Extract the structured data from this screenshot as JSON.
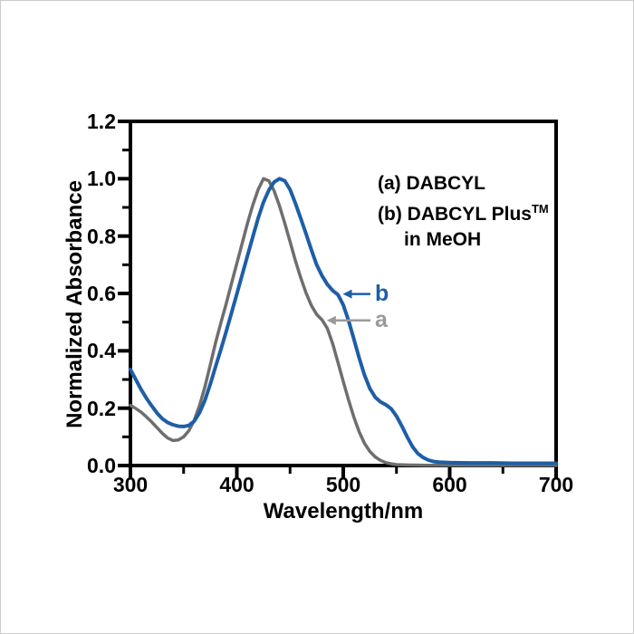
{
  "chart_data": {
    "type": "line",
    "title": "",
    "xlabel": "Wavelength/nm",
    "ylabel": "Normalized Absorbance",
    "xlim": [
      300,
      700
    ],
    "ylim": [
      0.0,
      1.2
    ],
    "grid": false,
    "x_major_ticks": [
      300,
      400,
      500,
      600,
      700
    ],
    "x_minor_ticks": [
      350,
      450,
      550,
      650
    ],
    "y_major_ticks": [
      0.0,
      0.2,
      0.4,
      0.6,
      0.8,
      1.0,
      1.2
    ],
    "y_minor_ticks": [
      0.1,
      0.3,
      0.5,
      0.7,
      0.9,
      1.1
    ],
    "axis_color": "#000000",
    "legend": {
      "line1": "(a) DABCYL",
      "line2": "(b) DABCYL Plus",
      "line2_sup": "TM",
      "line3": "in MeOH",
      "position": "upper-right-inside"
    },
    "series": [
      {
        "name": "a",
        "full_name": "DABCYL",
        "color": "#6e6e6e",
        "stroke_width": 3.5,
        "peak_nm": 425,
        "points": [
          [
            300,
            0.21
          ],
          [
            305,
            0.199
          ],
          [
            310,
            0.186
          ],
          [
            315,
            0.17
          ],
          [
            320,
            0.152
          ],
          [
            325,
            0.132
          ],
          [
            330,
            0.112
          ],
          [
            335,
            0.096
          ],
          [
            340,
            0.087
          ],
          [
            345,
            0.089
          ],
          [
            350,
            0.1
          ],
          [
            355,
            0.122
          ],
          [
            360,
            0.158
          ],
          [
            365,
            0.21
          ],
          [
            370,
            0.275
          ],
          [
            375,
            0.35
          ],
          [
            380,
            0.428
          ],
          [
            385,
            0.498
          ],
          [
            390,
            0.565
          ],
          [
            395,
            0.635
          ],
          [
            400,
            0.705
          ],
          [
            405,
            0.775
          ],
          [
            410,
            0.845
          ],
          [
            415,
            0.908
          ],
          [
            420,
            0.962
          ],
          [
            425,
            1.0
          ],
          [
            430,
            0.993
          ],
          [
            435,
            0.958
          ],
          [
            440,
            0.906
          ],
          [
            445,
            0.845
          ],
          [
            450,
            0.78
          ],
          [
            455,
            0.715
          ],
          [
            460,
            0.655
          ],
          [
            465,
            0.602
          ],
          [
            470,
            0.558
          ],
          [
            475,
            0.527
          ],
          [
            480,
            0.508
          ],
          [
            485,
            0.478
          ],
          [
            490,
            0.425
          ],
          [
            495,
            0.36
          ],
          [
            500,
            0.293
          ],
          [
            505,
            0.228
          ],
          [
            510,
            0.168
          ],
          [
            515,
            0.117
          ],
          [
            520,
            0.077
          ],
          [
            525,
            0.049
          ],
          [
            530,
            0.03
          ],
          [
            535,
            0.018
          ],
          [
            540,
            0.01
          ],
          [
            545,
            0.006
          ],
          [
            550,
            0.003
          ],
          [
            560,
            0.002
          ],
          [
            580,
            0.001
          ],
          [
            600,
            0.001
          ],
          [
            650,
            0.001
          ],
          [
            700,
            0.001
          ]
        ]
      },
      {
        "name": "b",
        "full_name": "DABCYL Plus in MeOH",
        "color": "#1e5ea7",
        "stroke_width": 4,
        "peak_nm": 438,
        "points": [
          [
            300,
            0.335
          ],
          [
            305,
            0.3
          ],
          [
            310,
            0.265
          ],
          [
            315,
            0.235
          ],
          [
            320,
            0.208
          ],
          [
            325,
            0.183
          ],
          [
            330,
            0.163
          ],
          [
            335,
            0.15
          ],
          [
            340,
            0.142
          ],
          [
            345,
            0.137
          ],
          [
            350,
            0.136
          ],
          [
            355,
            0.14
          ],
          [
            360,
            0.155
          ],
          [
            365,
            0.185
          ],
          [
            370,
            0.228
          ],
          [
            375,
            0.283
          ],
          [
            380,
            0.345
          ],
          [
            385,
            0.405
          ],
          [
            390,
            0.468
          ],
          [
            395,
            0.532
          ],
          [
            400,
            0.598
          ],
          [
            405,
            0.665
          ],
          [
            410,
            0.732
          ],
          [
            415,
            0.797
          ],
          [
            420,
            0.862
          ],
          [
            425,
            0.918
          ],
          [
            430,
            0.96
          ],
          [
            435,
            0.988
          ],
          [
            440,
            1.0
          ],
          [
            445,
            0.993
          ],
          [
            450,
            0.962
          ],
          [
            455,
            0.915
          ],
          [
            460,
            0.862
          ],
          [
            465,
            0.808
          ],
          [
            470,
            0.752
          ],
          [
            475,
            0.7
          ],
          [
            480,
            0.662
          ],
          [
            485,
            0.632
          ],
          [
            490,
            0.61
          ],
          [
            495,
            0.596
          ],
          [
            500,
            0.56
          ],
          [
            505,
            0.505
          ],
          [
            510,
            0.44
          ],
          [
            515,
            0.375
          ],
          [
            520,
            0.315
          ],
          [
            525,
            0.268
          ],
          [
            530,
            0.238
          ],
          [
            535,
            0.222
          ],
          [
            540,
            0.212
          ],
          [
            545,
            0.198
          ],
          [
            550,
            0.172
          ],
          [
            555,
            0.138
          ],
          [
            560,
            0.1
          ],
          [
            565,
            0.066
          ],
          [
            570,
            0.042
          ],
          [
            575,
            0.028
          ],
          [
            580,
            0.019
          ],
          [
            585,
            0.014
          ],
          [
            590,
            0.012
          ],
          [
            600,
            0.01
          ],
          [
            620,
            0.009
          ],
          [
            640,
            0.009
          ],
          [
            660,
            0.008
          ],
          [
            680,
            0.008
          ],
          [
            700,
            0.008
          ]
        ]
      }
    ],
    "annotations": [
      {
        "label": "b",
        "nm": 497,
        "abs": 0.598,
        "color": "#1e5ea7"
      },
      {
        "label": "a",
        "nm": 482,
        "abs": 0.506,
        "color": "#9a9a9a"
      }
    ]
  }
}
